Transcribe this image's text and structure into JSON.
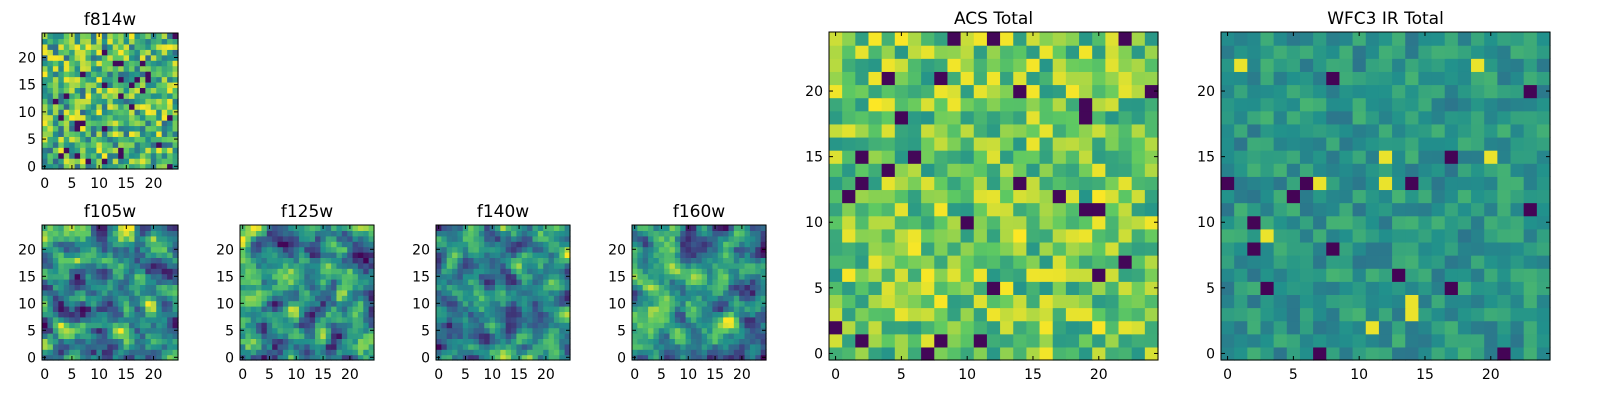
{
  "colors": {
    "viridis": [
      "#440154",
      "#3b528b",
      "#21918c",
      "#5ec962",
      "#fde725"
    ],
    "frame": "#000000"
  },
  "chart_data": [
    {
      "type": "heatmap",
      "title": "f814w",
      "xlim": [
        0,
        25
      ],
      "ylim": [
        0,
        25
      ],
      "xticks": [
        "0",
        "5",
        "10",
        "15",
        "20"
      ],
      "yticks": [
        "0",
        "5",
        "10",
        "15",
        "20"
      ],
      "grid_size": 25,
      "seed": 11,
      "texture": "noisy"
    },
    {
      "type": "heatmap",
      "title": "f105w",
      "xlim": [
        0,
        25
      ],
      "ylim": [
        0,
        25
      ],
      "xticks": [
        "0",
        "5",
        "10",
        "15",
        "20"
      ],
      "yticks": [
        "0",
        "5",
        "10",
        "15",
        "20"
      ],
      "grid_size": 25,
      "seed": 23,
      "texture": "smooth"
    },
    {
      "type": "heatmap",
      "title": "f125w",
      "xlim": [
        0,
        25
      ],
      "ylim": [
        0,
        25
      ],
      "xticks": [
        "0",
        "5",
        "10",
        "15",
        "20"
      ],
      "yticks": [
        "0",
        "5",
        "10",
        "15",
        "20"
      ],
      "grid_size": 25,
      "seed": 37,
      "texture": "smooth"
    },
    {
      "type": "heatmap",
      "title": "f140w",
      "xlim": [
        0,
        25
      ],
      "ylim": [
        0,
        25
      ],
      "xticks": [
        "0",
        "5",
        "10",
        "15",
        "20"
      ],
      "yticks": [
        "0",
        "5",
        "10",
        "15",
        "20"
      ],
      "grid_size": 25,
      "seed": 41,
      "texture": "smooth"
    },
    {
      "type": "heatmap",
      "title": "f160w",
      "xlim": [
        0,
        25
      ],
      "ylim": [
        0,
        25
      ],
      "xticks": [
        "0",
        "5",
        "10",
        "15",
        "20"
      ],
      "yticks": [
        "0",
        "5",
        "10",
        "15",
        "20"
      ],
      "grid_size": 25,
      "seed": 53,
      "texture": "smooth"
    },
    {
      "type": "heatmap",
      "title": "ACS Total",
      "xlim": [
        0,
        25
      ],
      "ylim": [
        0,
        25
      ],
      "xticks": [
        "0",
        "5",
        "10",
        "15",
        "20"
      ],
      "yticks": [
        "0",
        "5",
        "10",
        "15",
        "20"
      ],
      "grid_size": 25,
      "seed": 67,
      "texture": "bright"
    },
    {
      "type": "heatmap",
      "title": "WFC3 IR Total",
      "xlim": [
        0,
        25
      ],
      "ylim": [
        0,
        25
      ],
      "xticks": [
        "0",
        "5",
        "10",
        "15",
        "20"
      ],
      "yticks": [
        "0",
        "5",
        "10",
        "15",
        "20"
      ],
      "grid_size": 25,
      "seed": 79,
      "texture": "teal"
    }
  ]
}
